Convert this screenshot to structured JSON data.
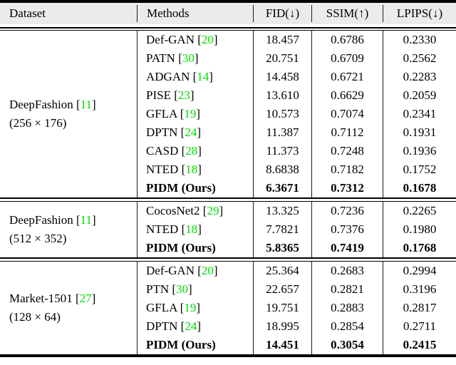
{
  "colors": {
    "citation_green": "#00dd00",
    "header_background": "#ebebeb",
    "rule_black": "#000000"
  },
  "table": {
    "header": {
      "dataset": "Dataset",
      "methods": "Methods",
      "fid": "FID(↓)",
      "ssim": "SSIM(↑)",
      "lpips": "LPIPS(↓)"
    },
    "sections": [
      {
        "dataset": {
          "pre": "DeepFashion [",
          "ref": "11",
          "post": "]",
          "size": "(256 × 176)"
        },
        "rows": [
          {
            "pre": "Def-GAN [",
            "ref": "20",
            "post": "]",
            "fid": "18.457",
            "ssim": "0.6786",
            "lpips": "0.2330",
            "bold": false
          },
          {
            "pre": "PATN [",
            "ref": "30",
            "post": "]",
            "fid": "20.751",
            "ssim": "0.6709",
            "lpips": "0.2562",
            "bold": false
          },
          {
            "pre": "ADGAN [",
            "ref": "14",
            "post": "]",
            "fid": "14.458",
            "ssim": "0.6721",
            "lpips": "0.2283",
            "bold": false
          },
          {
            "pre": "PISE [",
            "ref": "23",
            "post": "]",
            "fid": "13.610",
            "ssim": "0.6629",
            "lpips": "0.2059",
            "bold": false
          },
          {
            "pre": "GFLA [",
            "ref": "19",
            "post": "]",
            "fid": "10.573",
            "ssim": "0.7074",
            "lpips": "0.2341",
            "bold": false
          },
          {
            "pre": "DPTN [",
            "ref": "24",
            "post": "]",
            "fid": "11.387",
            "ssim": "0.7112",
            "lpips": "0.1931",
            "bold": false
          },
          {
            "pre": "CASD [",
            "ref": "28",
            "post": "]",
            "fid": "11.373",
            "ssim": "0.7248",
            "lpips": "0.1936",
            "bold": false
          },
          {
            "pre": "NTED [",
            "ref": "18",
            "post": "]",
            "fid": "8.6838",
            "ssim": "0.7182",
            "lpips": "0.1752",
            "bold": false
          },
          {
            "pre": "PIDM (Ours)",
            "ref": "",
            "post": "",
            "fid": "6.3671",
            "ssim": "0.7312",
            "lpips": "0.1678",
            "bold": true
          }
        ]
      },
      {
        "dataset": {
          "pre": "DeepFashion [",
          "ref": "11",
          "post": "]",
          "size": "(512 × 352)"
        },
        "rows": [
          {
            "pre": "CocosNet2 [",
            "ref": "29",
            "post": "]",
            "fid": "13.325",
            "ssim": "0.7236",
            "lpips": "0.2265",
            "bold": false
          },
          {
            "pre": "NTED [",
            "ref": "18",
            "post": "]",
            "fid": "7.7821",
            "ssim": "0.7376",
            "lpips": "0.1980",
            "bold": false
          },
          {
            "pre": "PIDM (Ours)",
            "ref": "",
            "post": "",
            "fid": "5.8365",
            "ssim": "0.7419",
            "lpips": "0.1768",
            "bold": true
          }
        ]
      },
      {
        "dataset": {
          "pre": "Market-1501 [",
          "ref": "27",
          "post": "]",
          "size": "(128 × 64)"
        },
        "rows": [
          {
            "pre": "Def-GAN [",
            "ref": "20",
            "post": "]",
            "fid": "25.364",
            "ssim": "0.2683",
            "lpips": "0.2994",
            "bold": false
          },
          {
            "pre": "PTN [",
            "ref": "30",
            "post": "]",
            "fid": "22.657",
            "ssim": "0.2821",
            "lpips": "0.3196",
            "bold": false
          },
          {
            "pre": "GFLA [",
            "ref": "19",
            "post": "]",
            "fid": "19.751",
            "ssim": "0.2883",
            "lpips": "0.2817",
            "bold": false
          },
          {
            "pre": "DPTN [",
            "ref": "24",
            "post": "]",
            "fid": "18.995",
            "ssim": "0.2854",
            "lpips": "0.2711",
            "bold": false
          },
          {
            "pre": "PIDM (Ours)",
            "ref": "",
            "post": "",
            "fid": "14.451",
            "ssim": "0.3054",
            "lpips": "0.2415",
            "bold": true
          }
        ]
      }
    ]
  }
}
